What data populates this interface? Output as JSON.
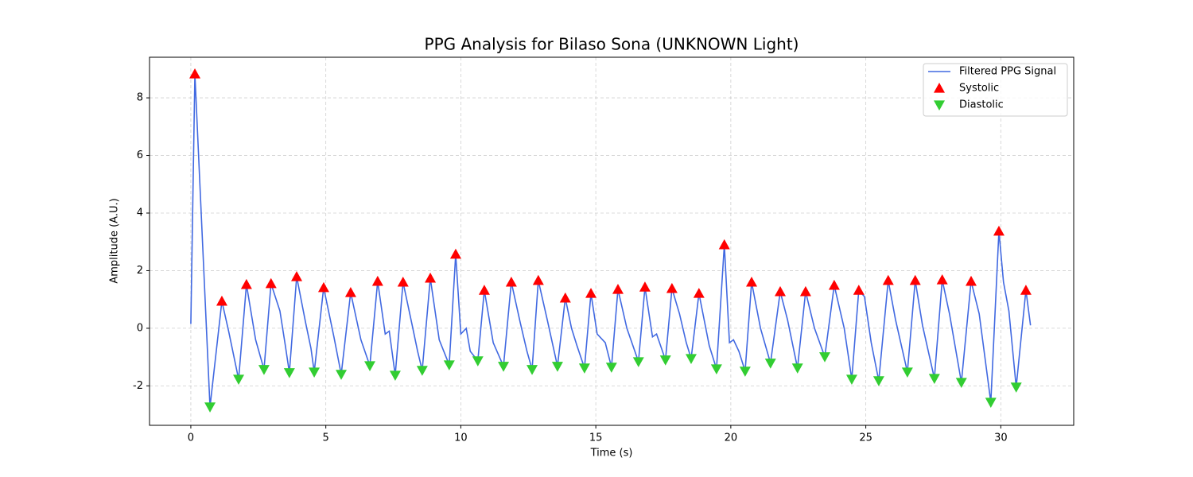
{
  "chart_data": {
    "type": "line",
    "title": "PPG Analysis for Bilaso Sona (UNKNOWN Light)",
    "x_label": "Time (s)",
    "y_label": "Amplitude (A.U.)",
    "xlim": [
      -1.53,
      32.7
    ],
    "ylim": [
      -3.37,
      9.41
    ],
    "xticks": [
      0,
      5,
      10,
      15,
      20,
      25,
      30
    ],
    "yticks": [
      -2,
      0,
      2,
      4,
      6,
      8
    ],
    "grid": true,
    "legend": "upper right",
    "series": [
      {
        "name": "Filtered PPG Signal",
        "type": "line",
        "color": "#4169e1",
        "x": [
          0.0,
          0.15,
          0.71,
          1.15,
          1.4,
          1.77,
          2.06,
          2.4,
          2.71,
          2.97,
          3.3,
          3.5,
          3.65,
          3.92,
          4.25,
          4.45,
          4.57,
          4.92,
          5.3,
          5.57,
          5.92,
          6.3,
          6.63,
          6.92,
          7.2,
          7.35,
          7.57,
          7.86,
          8.2,
          8.4,
          8.57,
          8.87,
          9.2,
          9.57,
          9.81,
          10.0,
          10.2,
          10.35,
          10.63,
          10.87,
          11.2,
          11.58,
          11.87,
          12.2,
          12.45,
          12.64,
          12.87,
          13.2,
          13.58,
          13.87,
          14.1,
          14.3,
          14.58,
          14.82,
          15.05,
          15.35,
          15.58,
          15.82,
          16.15,
          16.58,
          16.82,
          17.1,
          17.25,
          17.58,
          17.82,
          18.1,
          18.35,
          18.53,
          18.82,
          19.2,
          19.47,
          19.76,
          19.95,
          20.1,
          20.3,
          20.53,
          20.77,
          21.1,
          21.47,
          21.83,
          22.1,
          22.47,
          22.77,
          23.1,
          23.48,
          23.83,
          24.2,
          24.48,
          24.74,
          24.95,
          25.2,
          25.48,
          25.83,
          26.1,
          26.54,
          26.83,
          27.1,
          27.54,
          27.83,
          28.1,
          28.54,
          28.9,
          29.2,
          29.63,
          29.93,
          30.1,
          30.3,
          30.57,
          30.93,
          31.1
        ],
        "values": [
          0.15,
          8.83,
          -2.73,
          0.94,
          -0.1,
          -1.77,
          1.52,
          -0.4,
          -1.43,
          1.55,
          0.6,
          -0.6,
          -1.54,
          1.79,
          0.2,
          -0.7,
          -1.52,
          1.41,
          -0.3,
          -1.6,
          1.24,
          -0.4,
          -1.3,
          1.63,
          -0.2,
          -0.1,
          -1.63,
          1.6,
          0.1,
          -0.8,
          -1.46,
          1.74,
          -0.4,
          -1.27,
          2.57,
          -0.2,
          0.0,
          -0.8,
          -1.13,
          1.32,
          -0.5,
          -1.32,
          1.6,
          0.2,
          -0.8,
          -1.43,
          1.66,
          0.3,
          -1.32,
          1.05,
          0.0,
          -0.6,
          -1.38,
          1.21,
          -0.2,
          -0.5,
          -1.35,
          1.35,
          0.0,
          -1.16,
          1.43,
          -0.3,
          -0.2,
          -1.1,
          1.38,
          0.5,
          -0.5,
          -1.05,
          1.21,
          -0.6,
          -1.41,
          2.9,
          -0.5,
          -0.4,
          -0.8,
          -1.49,
          1.6,
          0.0,
          -1.21,
          1.27,
          0.3,
          -1.38,
          1.27,
          0.0,
          -0.99,
          1.49,
          0.0,
          -1.77,
          1.32,
          1.1,
          -0.5,
          -1.82,
          1.66,
          0.3,
          -1.52,
          1.66,
          0.1,
          -1.74,
          1.68,
          0.5,
          -1.88,
          1.63,
          0.5,
          -2.57,
          3.37,
          1.6,
          0.6,
          -2.04,
          1.32,
          0.1
        ]
      },
      {
        "name": "Systolic",
        "type": "scatter",
        "marker": "^",
        "color": "#ff0000",
        "x": [
          0.15,
          1.15,
          2.06,
          2.97,
          3.92,
          4.92,
          5.92,
          6.92,
          7.86,
          8.87,
          9.81,
          10.87,
          11.87,
          12.87,
          13.87,
          14.82,
          15.82,
          16.82,
          17.82,
          18.82,
          19.76,
          20.77,
          21.83,
          22.77,
          23.83,
          24.74,
          25.83,
          26.83,
          27.83,
          28.9,
          29.93,
          30.93
        ],
        "values": [
          8.83,
          0.94,
          1.52,
          1.55,
          1.79,
          1.41,
          1.24,
          1.63,
          1.6,
          1.74,
          2.57,
          1.32,
          1.6,
          1.66,
          1.05,
          1.21,
          1.35,
          1.43,
          1.38,
          1.21,
          2.9,
          1.6,
          1.27,
          1.27,
          1.49,
          1.32,
          1.66,
          1.66,
          1.68,
          1.63,
          3.37,
          1.32
        ]
      },
      {
        "name": "Diastolic",
        "type": "scatter",
        "marker": "v",
        "color": "#32cd32",
        "x": [
          0.71,
          1.77,
          2.71,
          3.65,
          4.57,
          5.57,
          6.63,
          7.57,
          8.57,
          9.57,
          10.63,
          11.58,
          12.64,
          13.58,
          14.58,
          15.58,
          16.58,
          17.58,
          18.53,
          19.47,
          20.53,
          21.47,
          22.47,
          23.48,
          24.48,
          25.48,
          26.54,
          27.54,
          28.54,
          29.63,
          30.57
        ],
        "values": [
          -2.73,
          -1.77,
          -1.43,
          -1.54,
          -1.52,
          -1.6,
          -1.3,
          -1.63,
          -1.46,
          -1.27,
          -1.13,
          -1.32,
          -1.43,
          -1.32,
          -1.38,
          -1.35,
          -1.16,
          -1.1,
          -1.05,
          -1.41,
          -1.49,
          -1.21,
          -1.38,
          -0.99,
          -1.77,
          -1.82,
          -1.52,
          -1.74,
          -1.88,
          -2.57,
          -2.04
        ]
      }
    ]
  }
}
